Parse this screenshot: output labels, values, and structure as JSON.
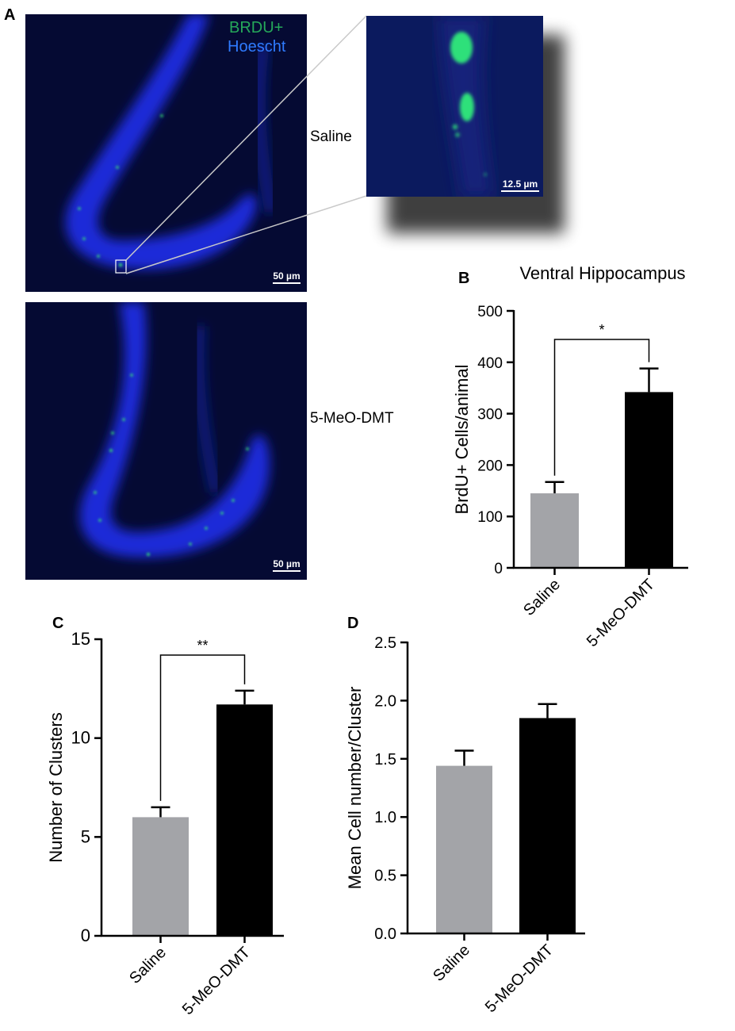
{
  "panel_letters": {
    "a": "A",
    "b": "B",
    "c": "C",
    "d": "D"
  },
  "micrographs": {
    "legend": {
      "line1": "BRDU+",
      "line2": "Hoescht",
      "line1_color": "#25a85a",
      "line2_color": "#2f7bff"
    },
    "top": {
      "condition": "Saline",
      "scale": "50 µm"
    },
    "inset": {
      "scale": "12.5 µm"
    },
    "bottom": {
      "condition": "5-MeO-DMT",
      "scale": "50 µm"
    }
  },
  "chart_data": [
    {
      "panel": "B",
      "type": "bar",
      "title": "Ventral Hippocampus",
      "ylabel": "BrdU+ Cells/animal",
      "categories": [
        "Saline",
        "5-MeO-DMT"
      ],
      "values": [
        145,
        342
      ],
      "errors": [
        22,
        46
      ],
      "colors": [
        "#a3a4a8",
        "#000000"
      ],
      "ylim": [
        0,
        500
      ],
      "yticks": [
        0,
        100,
        200,
        300,
        400,
        500
      ],
      "tick_labels": [
        "0",
        "100",
        "200",
        "300",
        "400",
        "500"
      ],
      "significance": "*"
    },
    {
      "panel": "C",
      "type": "bar",
      "title": "",
      "ylabel": "Number of Clusters",
      "categories": [
        "Saline",
        "5-MeO-DMT"
      ],
      "values": [
        6.0,
        11.7
      ],
      "errors": [
        0.5,
        0.7
      ],
      "colors": [
        "#a3a4a8",
        "#000000"
      ],
      "ylim": [
        0,
        15
      ],
      "yticks": [
        0,
        5,
        10,
        15
      ],
      "tick_labels": [
        "0",
        "5",
        "10",
        "15"
      ],
      "significance": "**"
    },
    {
      "panel": "D",
      "type": "bar",
      "title": "",
      "ylabel": "Mean Cell number/Cluster",
      "categories": [
        "Saline",
        "5-MeO-DMT"
      ],
      "values": [
        1.44,
        1.85
      ],
      "errors": [
        0.13,
        0.12
      ],
      "colors": [
        "#a3a4a8",
        "#000000"
      ],
      "ylim": [
        0,
        2.5
      ],
      "yticks": [
        0,
        0.5,
        1.0,
        1.5,
        2.0,
        2.5
      ],
      "tick_labels": [
        "0.0",
        "0.5",
        "1.0",
        "1.5",
        "2.0",
        "2.5"
      ],
      "significance": ""
    }
  ]
}
